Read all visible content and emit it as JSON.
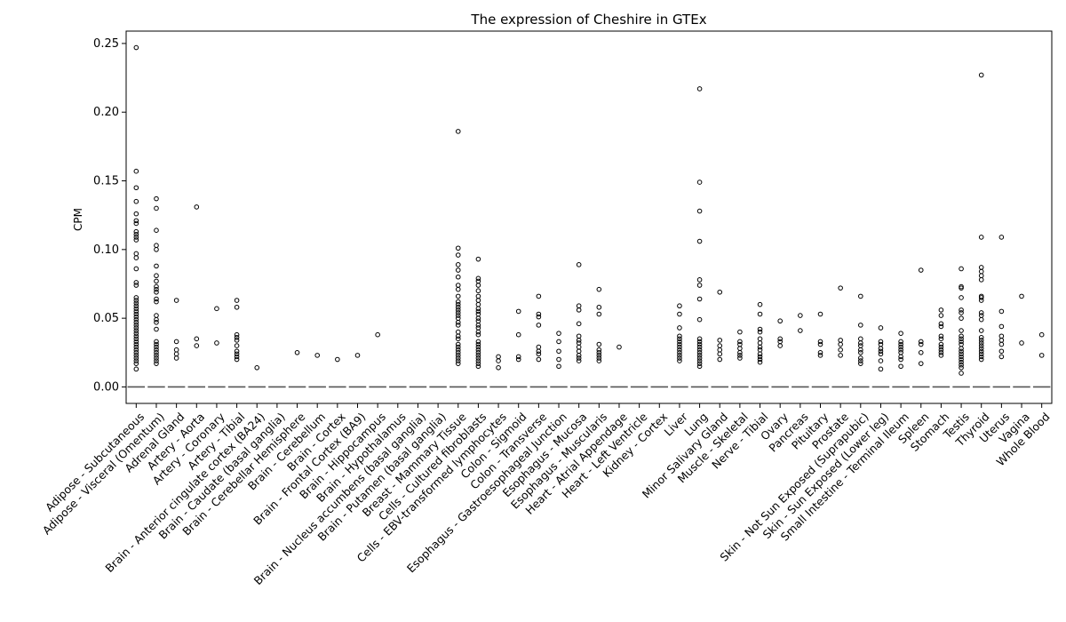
{
  "chart_data": {
    "type": "boxplot",
    "title": "The expression of Cheshire in GTEx",
    "xlabel": "",
    "ylabel": "CPM",
    "ylim": [
      -0.012,
      0.259
    ],
    "yticks": [
      0.0,
      0.05,
      0.1,
      0.15,
      0.2,
      0.25
    ],
    "ytick_labels": [
      "0.00",
      "0.05",
      "0.10",
      "0.15",
      "0.20",
      "0.25"
    ],
    "grid": false,
    "median": 0.0,
    "categories": [
      "Adipose - Subcutaneous",
      "Adipose - Visceral (Omentum)",
      "Adrenal Gland",
      "Artery - Aorta",
      "Artery - Coronary",
      "Artery - Tibial",
      "Brain - Anterior cingulate cortex (BA24)",
      "Brain - Caudate (basal ganglia)",
      "Brain - Cerebellar Hemisphere",
      "Brain - Cerebellum",
      "Brain - Cortex",
      "Brain - Frontal Cortex (BA9)",
      "Brain - Hippocampus",
      "Brain - Hypothalamus",
      "Brain - Nucleus accumbens (basal ganglia)",
      "Brain - Putamen (basal ganglia)",
      "Breast - Mammary Tissue",
      "Cells - Cultured fibroblasts",
      "Cells - EBV-transformed lymphocytes",
      "Colon - Sigmoid",
      "Colon - Transverse",
      "Esophagus - Gastroesophageal Junction",
      "Esophagus - Mucosa",
      "Esophagus - Muscularis",
      "Heart - Atrial Appendage",
      "Heart - Left Ventricle",
      "Kidney - Cortex",
      "Liver",
      "Lung",
      "Minor Salivary Gland",
      "Muscle - Skeletal",
      "Nerve - Tibial",
      "Ovary",
      "Pancreas",
      "Pituitary",
      "Prostate",
      "Skin - Not Sun Exposed (Suprapubic)",
      "Skin - Sun Exposed (Lower leg)",
      "Small Intestine - Terminal Ileum",
      "Spleen",
      "Stomach",
      "Testis",
      "Thyroid",
      "Uterus",
      "Vagina",
      "Whole Blood"
    ],
    "outliers": [
      [
        0.247,
        0.157,
        0.145,
        0.135,
        0.126,
        0.121,
        0.119,
        0.113,
        0.111,
        0.109,
        0.107,
        0.097,
        0.094,
        0.086,
        0.076,
        0.074,
        0.065,
        0.063,
        0.061,
        0.059,
        0.057,
        0.055,
        0.053,
        0.051,
        0.049,
        0.047,
        0.045,
        0.043,
        0.041,
        0.039,
        0.037,
        0.035,
        0.033,
        0.031,
        0.029,
        0.027,
        0.025,
        0.023,
        0.021,
        0.019,
        0.017,
        0.013
      ],
      [
        0.137,
        0.13,
        0.114,
        0.103,
        0.1,
        0.088,
        0.081,
        0.077,
        0.073,
        0.071,
        0.069,
        0.064,
        0.062,
        0.052,
        0.049,
        0.047,
        0.042,
        0.033,
        0.031,
        0.029,
        0.027,
        0.025,
        0.023,
        0.021,
        0.019,
        0.017
      ],
      [
        0.063,
        0.033,
        0.027,
        0.024,
        0.021
      ],
      [
        0.131,
        0.035,
        0.03
      ],
      [
        0.057,
        0.032
      ],
      [
        0.063,
        0.058,
        0.038,
        0.036,
        0.034,
        0.03,
        0.026,
        0.024,
        0.022,
        0.02
      ],
      [
        0.014
      ],
      [],
      [
        0.025
      ],
      [
        0.023
      ],
      [
        0.02
      ],
      [
        0.023
      ],
      [
        0.038
      ],
      [],
      [],
      [],
      [
        0.186,
        0.101,
        0.096,
        0.089,
        0.085,
        0.08,
        0.074,
        0.071,
        0.066,
        0.062,
        0.06,
        0.058,
        0.056,
        0.054,
        0.052,
        0.05,
        0.047,
        0.045,
        0.04,
        0.037,
        0.035,
        0.031,
        0.029,
        0.027,
        0.025,
        0.023,
        0.021,
        0.019,
        0.017
      ],
      [
        0.093,
        0.079,
        0.077,
        0.074,
        0.07,
        0.066,
        0.063,
        0.06,
        0.057,
        0.055,
        0.053,
        0.05,
        0.048,
        0.045,
        0.043,
        0.04,
        0.038,
        0.033,
        0.031,
        0.029,
        0.027,
        0.025,
        0.023,
        0.021,
        0.019,
        0.017,
        0.015
      ],
      [
        0.022,
        0.019,
        0.014
      ],
      [
        0.055,
        0.038,
        0.022,
        0.02
      ],
      [
        0.066,
        0.053,
        0.051,
        0.045,
        0.029,
        0.026,
        0.024,
        0.02
      ],
      [
        0.039,
        0.033,
        0.026,
        0.02,
        0.015
      ],
      [
        0.089,
        0.059,
        0.056,
        0.046,
        0.037,
        0.034,
        0.032,
        0.029,
        0.026,
        0.023,
        0.021,
        0.019
      ],
      [
        0.071,
        0.058,
        0.053,
        0.031,
        0.027,
        0.025,
        0.023,
        0.021,
        0.019
      ],
      [
        0.029
      ],
      [],
      [],
      [
        0.059,
        0.053,
        0.043,
        0.037,
        0.035,
        0.033,
        0.031,
        0.029,
        0.027,
        0.025,
        0.023,
        0.021,
        0.019
      ],
      [
        0.217,
        0.149,
        0.128,
        0.106,
        0.078,
        0.074,
        0.064,
        0.049,
        0.035,
        0.033,
        0.031,
        0.029,
        0.027,
        0.025,
        0.023,
        0.021,
        0.019,
        0.017,
        0.015
      ],
      [
        0.069,
        0.034,
        0.03,
        0.027,
        0.024,
        0.02
      ],
      [
        0.04,
        0.033,
        0.031,
        0.028,
        0.025,
        0.023,
        0.021
      ],
      [
        0.06,
        0.053,
        0.042,
        0.04,
        0.035,
        0.032,
        0.029,
        0.027,
        0.024,
        0.022,
        0.02,
        0.018
      ],
      [
        0.048,
        0.035,
        0.033,
        0.03
      ],
      [
        0.052,
        0.041
      ],
      [
        0.053,
        0.033,
        0.031,
        0.025,
        0.023
      ],
      [
        0.072,
        0.034,
        0.031,
        0.027,
        0.023
      ],
      [
        0.066,
        0.045,
        0.035,
        0.032,
        0.03,
        0.027,
        0.025,
        0.021,
        0.019,
        0.017
      ],
      [
        0.043,
        0.033,
        0.031,
        0.028,
        0.026,
        0.024,
        0.019,
        0.013
      ],
      [
        0.039,
        0.033,
        0.031,
        0.029,
        0.027,
        0.025,
        0.022,
        0.02,
        0.015
      ],
      [
        0.085,
        0.033,
        0.031,
        0.025,
        0.017
      ],
      [
        0.056,
        0.052,
        0.046,
        0.044,
        0.037,
        0.035,
        0.031,
        0.029,
        0.027,
        0.025,
        0.023
      ],
      [
        0.086,
        0.073,
        0.072,
        0.065,
        0.056,
        0.054,
        0.05,
        0.041,
        0.037,
        0.035,
        0.033,
        0.031,
        0.028,
        0.026,
        0.024,
        0.022,
        0.02,
        0.018,
        0.016,
        0.014,
        0.01
      ],
      [
        0.227,
        0.109,
        0.087,
        0.084,
        0.081,
        0.078,
        0.066,
        0.065,
        0.063,
        0.054,
        0.052,
        0.049,
        0.041,
        0.036,
        0.034,
        0.032,
        0.03,
        0.028,
        0.026,
        0.024,
        0.022,
        0.02
      ],
      [
        0.109,
        0.055,
        0.044,
        0.037,
        0.034,
        0.031,
        0.026,
        0.022
      ],
      [
        0.066,
        0.032
      ],
      [
        0.038,
        0.023
      ]
    ]
  }
}
